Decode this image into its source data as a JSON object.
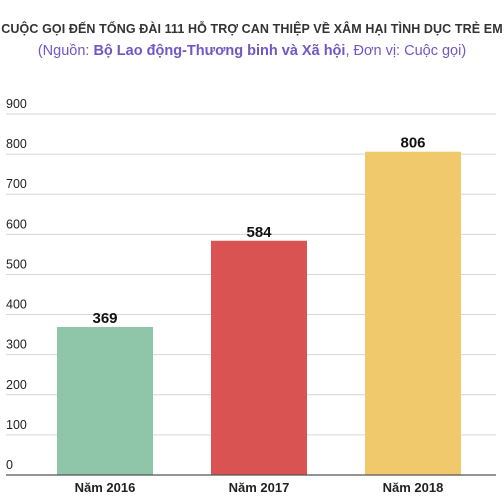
{
  "chart_data": {
    "type": "bar",
    "title": "CUỘC GỌI ĐẾN TỔNG ĐÀI 111 HỖ TRỢ CAN THIỆP VỀ XÂM HẠI TÌNH DỤC TRẺ EM",
    "subtitle_prefix": "(Nguồn: ",
    "subtitle_source": "Bộ Lao động-Thương binh và Xã hội",
    "subtitle_suffix": ", Đơn vị: Cuộc gọi)",
    "categories": [
      "Năm 2016",
      "Năm 2017",
      "Năm 2018"
    ],
    "values": [
      369,
      584,
      806
    ],
    "colors": [
      "#8fc5a9",
      "#d95353",
      "#f0c96c"
    ],
    "data_labels": [
      "369",
      "584",
      "806"
    ],
    "yticks": [
      "0",
      "100",
      "200",
      "300",
      "400",
      "500",
      "600",
      "700",
      "800",
      "900"
    ],
    "ylim": [
      0,
      900
    ],
    "grid": true,
    "xlabel": "",
    "ylabel": ""
  }
}
